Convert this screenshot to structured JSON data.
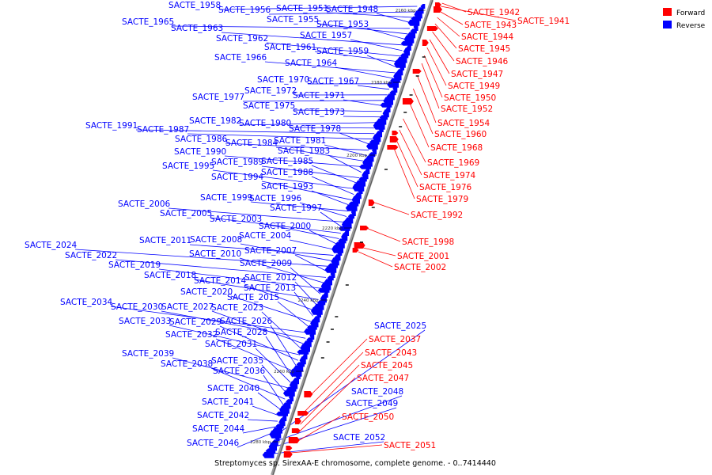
{
  "caption": "Streptomyces sp. SirexAA-E chromosome, complete genome. - 0..7414440",
  "legend": [
    {
      "label": "Forward",
      "color": "#ff0000"
    },
    {
      "label": "Reverse",
      "color": "#0000ff"
    }
  ],
  "colors": {
    "forward": "#ff0000",
    "reverse": "#0000ff",
    "axis": "#888888",
    "tick": "#000000"
  },
  "ticks": [
    {
      "label": "2160 kbp"
    },
    {
      "label": "2180 kbp"
    },
    {
      "label": "2200 kbp"
    },
    {
      "label": "2220 kbp"
    },
    {
      "label": "2240 kbp"
    },
    {
      "label": "2260 kbp"
    },
    {
      "label": "2280 kbp"
    }
  ],
  "reverse_labels": [
    "SACTE_1958",
    "SACTE_1956",
    "SACTE_1951",
    "SACTE_1948",
    "SACTE_1965",
    "SACTE_1955",
    "SACTE_1953",
    "SACTE_1963",
    "SACTE_1957",
    "SACTE_1962",
    "SACTE_1961",
    "SACTE_1959",
    "SACTE_1966",
    "SACTE_1964",
    "SACTE_1970",
    "SACTE_1967",
    "SACTE_1972",
    "SACTE_1977",
    "SACTE_1971",
    "SACTE_1975",
    "SACTE_1973",
    "SACTE_1982",
    "SACTE_1980",
    "SACTE_1991",
    "SACTE_1987",
    "SACTE_1978",
    "SACTE_1986",
    "SACTE_1981",
    "SACTE_1984",
    "SACTE_1990",
    "SACTE_1983",
    "SACTE_1989",
    "SACTE_1985",
    "SACTE_1995",
    "SACTE_1988",
    "SACTE_1994",
    "SACTE_1993",
    "SACTE_1999",
    "SACTE_1996",
    "SACTE_2006",
    "SACTE_1997",
    "SACTE_2005",
    "SACTE_2003",
    "SACTE_2000",
    "SACTE_2004",
    "SACTE_2011",
    "SACTE_2008",
    "SACTE_2024",
    "SACTE_2007",
    "SACTE_2022",
    "SACTE_2010",
    "SACTE_2019",
    "SACTE_2009",
    "SACTE_2018",
    "SACTE_2012",
    "SACTE_2014",
    "SACTE_2013",
    "SACTE_2020",
    "SACTE_2015",
    "SACTE_2034",
    "SACTE_2030",
    "SACTE_2027",
    "SACTE_2023",
    "SACTE_2033",
    "SACTE_2029",
    "SACTE_2026",
    "SACTE_2032",
    "SACTE_2028",
    "SACTE_2031",
    "SACTE_2039",
    "SACTE_2035",
    "SACTE_2038",
    "SACTE_2036",
    "SACTE_2040",
    "SACTE_2041",
    "SACTE_2042",
    "SACTE_2044",
    "SACTE_2046",
    "SACTE_2025",
    "SACTE_2048",
    "SACTE_2049",
    "SACTE_2052"
  ],
  "forward_labels": [
    "SACTE_1942",
    "SACTE_1941",
    "SACTE_1943",
    "SACTE_1944",
    "SACTE_1945",
    "SACTE_1946",
    "SACTE_1947",
    "SACTE_1949",
    "SACTE_1950",
    "SACTE_1952",
    "SACTE_1954",
    "SACTE_1960",
    "SACTE_1968",
    "SACTE_1969",
    "SACTE_1974",
    "SACTE_1976",
    "SACTE_1979",
    "SACTE_1992",
    "SACTE_1998",
    "SACTE_2001",
    "SACTE_2002",
    "SACTE_2037",
    "SACTE_2043",
    "SACTE_2045",
    "SACTE_2047",
    "SACTE_2050",
    "SACTE_2051"
  ]
}
